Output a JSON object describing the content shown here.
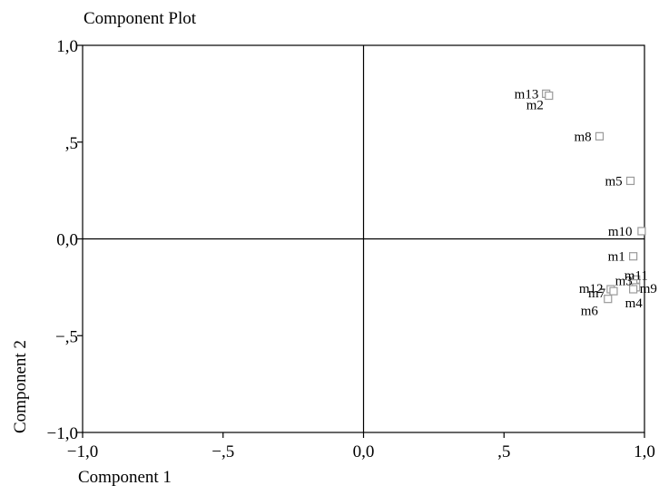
{
  "chart_data": {
    "type": "scatter",
    "title": "Component Plot",
    "xlabel": "Component 1",
    "ylabel": "Component 2",
    "xlim": [
      -1.0,
      1.0
    ],
    "ylim": [
      -1.0,
      1.0
    ],
    "x_ticks": [
      "−1,0",
      "−,5",
      "0,0",
      ",5",
      "1,0"
    ],
    "y_ticks": [
      "1,0",
      ",5",
      "0,0",
      "−,5",
      "−1,0"
    ],
    "grid": false,
    "reference_lines": {
      "x": 0,
      "y": 0
    },
    "marker": "square",
    "marker_color": "#9a9a9a",
    "points": [
      {
        "label": "m13",
        "x": 0.65,
        "y": 0.75
      },
      {
        "label": "m2",
        "x": 0.66,
        "y": 0.74
      },
      {
        "label": "m8",
        "x": 0.84,
        "y": 0.53
      },
      {
        "label": "m5",
        "x": 0.95,
        "y": 0.3
      },
      {
        "label": "m10",
        "x": 0.99,
        "y": 0.04
      },
      {
        "label": "m1",
        "x": 0.96,
        "y": -0.09
      },
      {
        "label": "m11",
        "x": 0.97,
        "y": -0.21
      },
      {
        "label": "m3",
        "x": 0.96,
        "y": -0.23
      },
      {
        "label": "m9",
        "x": 0.97,
        "y": -0.25
      },
      {
        "label": "m4",
        "x": 0.96,
        "y": -0.26
      },
      {
        "label": "m12",
        "x": 0.88,
        "y": -0.26
      },
      {
        "label": "m7",
        "x": 0.89,
        "y": -0.27
      },
      {
        "label": "m6",
        "x": 0.87,
        "y": -0.31
      }
    ]
  }
}
